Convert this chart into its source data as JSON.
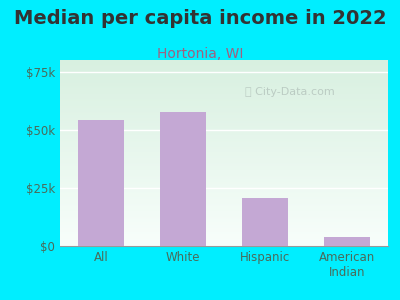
{
  "title": "Median per capita income in 2022",
  "subtitle": "Hortonia, WI",
  "categories": [
    "All",
    "White",
    "Hispanic",
    "American\nIndian"
  ],
  "values": [
    54000,
    57500,
    20500,
    4000
  ],
  "bar_color": "#c4a8d4",
  "title_fontsize": 14,
  "subtitle_fontsize": 10,
  "subtitle_color": "#a06080",
  "title_color": "#333333",
  "background_outer": "#00eeff",
  "ylim": [
    0,
    80000
  ],
  "yticks": [
    0,
    25000,
    50000,
    75000
  ],
  "ytick_labels": [
    "$0",
    "$25k",
    "$50k",
    "$75k"
  ],
  "watermark": "City-Data.com",
  "tick_color": "#4a6b5a",
  "axis_label_color": "#4a6b5a",
  "grid_color": "#ffffff"
}
